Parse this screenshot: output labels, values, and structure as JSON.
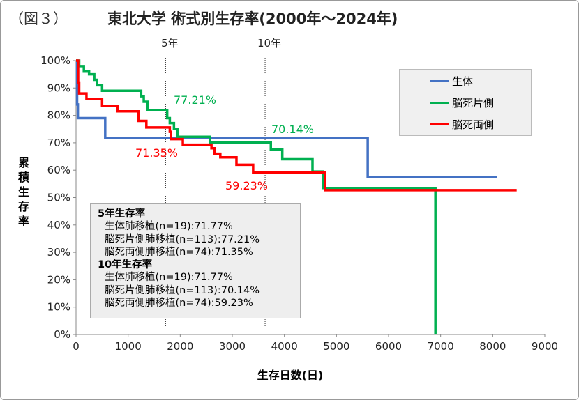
{
  "figure_label": "（図３）",
  "chart_data": {
    "type": "line",
    "step": true,
    "title": "東北大学  術式別生存率(2000年～2024年)",
    "xlabel": "生存日数(日)",
    "ylabel": "累積生存率",
    "xlim": [
      0,
      9000
    ],
    "ylim": [
      0,
      100
    ],
    "x_ticks": [
      "0",
      "1000",
      "2000",
      "3000",
      "4000",
      "5000",
      "6000",
      "7000",
      "8000",
      "9000"
    ],
    "y_ticks": [
      "0%",
      "10%",
      "20%",
      "30%",
      "40%",
      "50%",
      "60%",
      "70%",
      "80%",
      "90%",
      "100%"
    ],
    "grid": false,
    "legend_position": "top-right",
    "reference_lines": [
      {
        "label": "5年",
        "x": 1720
      },
      {
        "label": "10年",
        "x": 3630
      }
    ],
    "series": [
      {
        "name": "生体",
        "color": "#4472C4",
        "points": [
          [
            0,
            100
          ],
          [
            20,
            84
          ],
          [
            35,
            79
          ],
          [
            560,
            71.77
          ],
          [
            5600,
            57.5
          ],
          [
            8080,
            57.5
          ]
        ]
      },
      {
        "name": "脳死片側",
        "color": "#00B050",
        "points": [
          [
            0,
            100
          ],
          [
            60,
            98
          ],
          [
            150,
            96
          ],
          [
            250,
            95
          ],
          [
            350,
            93
          ],
          [
            400,
            91
          ],
          [
            500,
            89
          ],
          [
            1250,
            87
          ],
          [
            1300,
            85
          ],
          [
            1370,
            82
          ],
          [
            1750,
            79
          ],
          [
            1800,
            77.21
          ],
          [
            1880,
            75
          ],
          [
            1950,
            72.2
          ],
          [
            2570,
            70.14
          ],
          [
            3740,
            67.5
          ],
          [
            3960,
            64
          ],
          [
            4540,
            59.5
          ],
          [
            4740,
            53.5
          ],
          [
            6900,
            53.5
          ],
          [
            6900,
            0
          ]
        ]
      },
      {
        "name": "脳死両側",
        "color": "#FF0000",
        "points": [
          [
            0,
            100
          ],
          [
            40,
            92
          ],
          [
            60,
            88
          ],
          [
            200,
            86
          ],
          [
            500,
            83.5
          ],
          [
            800,
            81.5
          ],
          [
            1200,
            78
          ],
          [
            1350,
            75.6
          ],
          [
            1800,
            74
          ],
          [
            1820,
            71.35
          ],
          [
            2050,
            69.3
          ],
          [
            2600,
            68
          ],
          [
            2660,
            66
          ],
          [
            2770,
            64.7
          ],
          [
            3080,
            62
          ],
          [
            3400,
            59.23
          ],
          [
            4780,
            52.7
          ],
          [
            8460,
            52.7
          ]
        ]
      }
    ],
    "annotations": [
      {
        "text": "77.21%",
        "color": "#00B050"
      },
      {
        "text": "71.35%",
        "color": "#FF0000"
      },
      {
        "text": "70.14%",
        "color": "#00B050"
      },
      {
        "text": "59.23%",
        "color": "#FF0000"
      }
    ]
  },
  "stats_box": {
    "h5": "5年生存率",
    "r5": [
      "生体肺移植(n=19):71.77%",
      "脳死片側肺移植(n=113):77.21%",
      "脳死両側肺移植(n=74):71.35%"
    ],
    "h10": "10年生存率",
    "r10": [
      "生体肺移植(n=19):71.77%",
      "脳死片側肺移植(n=113):70.14%",
      "脳死両側肺移植(n=74):59.23%"
    ]
  }
}
